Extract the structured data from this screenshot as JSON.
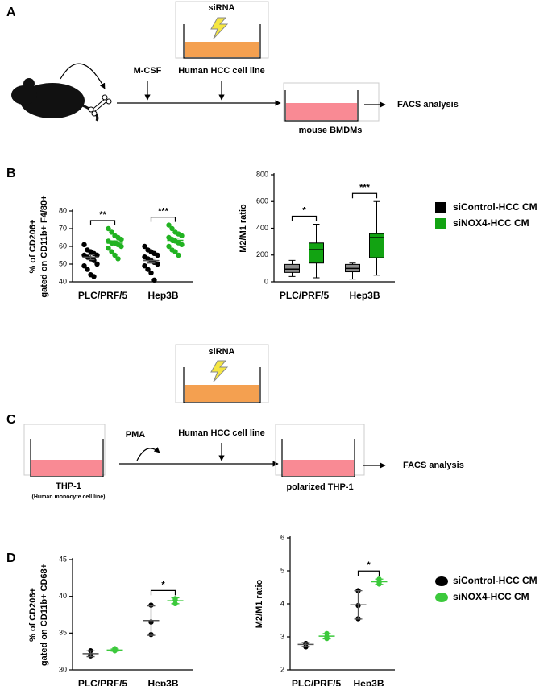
{
  "panel_labels": [
    "A",
    "B",
    "C",
    "D"
  ],
  "schematic_a": {
    "dish_top": "siRNA",
    "step1": "M-CSF",
    "step2": "Human HCC cell line",
    "result": "mouse BMDMs",
    "readout": "FACS analysis"
  },
  "schematic_c": {
    "dish_top": "siRNA",
    "step1": "PMA",
    "step2": "Human HCC cell line",
    "start": "THP-1",
    "start_note": "(Human monocyte cell line)",
    "result": "polarized THP-1",
    "readout": "FACS analysis"
  },
  "chart_data": [
    {
      "type": "strip",
      "ylabel": [
        "% of CD206+",
        "gated on CD11b+ F4/80+"
      ],
      "categories": [
        "PLC/PRF/5",
        "Hep3B"
      ],
      "ylim": [
        40,
        80
      ],
      "yticks": [
        40,
        50,
        60,
        70,
        80
      ],
      "series": [
        {
          "color": "#000000",
          "values": [
            [
              61,
              58,
              57,
              56,
              55,
              55,
              54,
              53,
              52,
              50,
              49,
              47,
              44,
              43
            ],
            [
              60,
              58,
              57,
              56,
              55,
              54,
              53,
              52,
              51,
              50,
              49,
              47,
              45,
              41
            ]
          ],
          "mean": [
            53.9,
            52
          ],
          "error": [
            1.4,
            1.4
          ]
        },
        {
          "color": "#22b322",
          "values": [
            [
              70,
              68,
              66,
              65,
              64,
              63,
              62,
              62,
              61,
              60,
              59,
              57,
              55,
              53
            ],
            [
              72,
              70,
              68,
              67,
              66,
              65,
              64,
              63,
              62,
              61,
              60,
              58,
              57,
              55
            ]
          ],
          "mean": [
            61.8,
            63.4
          ],
          "error": [
            1.3,
            1.3
          ]
        }
      ],
      "annotations": [
        {
          "category": 0,
          "text": "**"
        },
        {
          "category": 1,
          "text": "***"
        }
      ]
    },
    {
      "type": "box",
      "ylabel": [
        "M2/M1 ratio"
      ],
      "categories": [
        "PLC/PRF/5",
        "Hep3B"
      ],
      "ylim": [
        0,
        800
      ],
      "yticks": [
        0,
        200,
        400,
        600,
        800
      ],
      "legend": "right",
      "marker": "square",
      "series": [
        {
          "name": "siControl-HCC CM",
          "color": "#8c8c8c",
          "legend_color": "#000000",
          "stats": [
            [
              40,
              70,
              95,
              130,
              160
            ],
            [
              20,
              75,
              100,
              130,
              140
            ]
          ]
        },
        {
          "name": "siNOX4-HCC CM",
          "color": "#12a312",
          "legend_color": "#12a312",
          "stats": [
            [
              30,
              140,
              240,
              290,
              430
            ],
            [
              50,
              180,
              330,
              360,
              600
            ]
          ]
        }
      ],
      "annotations": [
        {
          "category": 0,
          "text": "*"
        },
        {
          "category": 1,
          "text": "***"
        }
      ]
    },
    {
      "type": "strip",
      "ylabel": [
        "% of CD206+",
        "gated on CD11b+ CD68+"
      ],
      "categories": [
        "PLC/PRF/5",
        "Hep3B"
      ],
      "ylim": [
        30,
        45
      ],
      "yticks": [
        30,
        35,
        40,
        45
      ],
      "series": [
        {
          "color": "#000000",
          "values": [
            [
              32.0,
              32.6,
              31.9
            ],
            [
              38.8,
              34.8,
              36.5
            ]
          ],
          "mean": [
            32.2,
            36.7
          ],
          "error": [
            0.4,
            2
          ]
        },
        {
          "color": "#3cc93c",
          "values": [
            [
              32.7,
              32.9,
              32.6
            ],
            [
              39.0,
              39.7,
              39.5
            ]
          ],
          "mean": [
            32.7,
            39.4
          ],
          "error": [
            0.15,
            0.4
          ]
        }
      ],
      "annotations": [
        {
          "category": 1,
          "text": "*"
        }
      ]
    },
    {
      "type": "strip",
      "ylabel": [
        "M2/M1 ratio"
      ],
      "categories": [
        "PLC/PRF/5",
        "Hep3B"
      ],
      "ylim": [
        2,
        6
      ],
      "yticks": [
        2,
        3,
        4,
        5,
        6
      ],
      "legend": "right",
      "marker": "circle",
      "series": [
        {
          "name": "siControl-HCC CM",
          "color": "#000000",
          "values": [
            [
              2.7,
              2.8,
              2.8
            ],
            [
              3.55,
              4.4,
              3.95
            ]
          ],
          "mean": [
            2.77,
            3.97
          ],
          "error": [
            0.06,
            0.43
          ]
        },
        {
          "name": "siNOX4-HCC CM",
          "color": "#3cc93c",
          "values": [
            [
              3.0,
              3.1,
              2.95
            ],
            [
              4.6,
              4.75,
              4.65
            ]
          ],
          "mean": [
            3.02,
            4.67
          ],
          "error": [
            0.08,
            0.08
          ]
        }
      ],
      "annotations": [
        {
          "category": 1,
          "text": "*"
        }
      ]
    }
  ]
}
